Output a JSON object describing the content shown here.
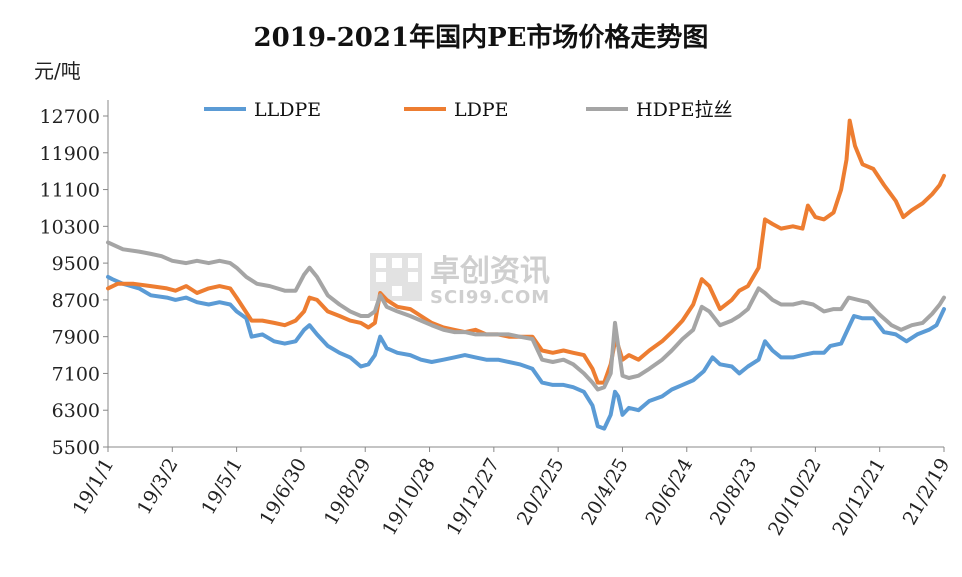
{
  "chart_data": {
    "type": "line",
    "title": "2019-2021年国内PE市场价格走势图",
    "ylabel": "元/吨",
    "ylim": [
      5500,
      12700
    ],
    "yticks": [
      12700,
      11900,
      11100,
      10300,
      9500,
      8700,
      7900,
      7100,
      6300,
      5500
    ],
    "xlim": [
      "2019-01-01",
      "2021-02-19"
    ],
    "xticks": [
      "19/1/1",
      "19/3/2",
      "19/5/1",
      "19/6/30",
      "19/8/29",
      "19/10/28",
      "19/12/27",
      "20/2/25",
      "20/4/25",
      "20/6/24",
      "20/8/23",
      "20/10/22",
      "20/12/21",
      "21/2/19"
    ],
    "legend_position": "top",
    "grid": false,
    "series": [
      {
        "name": "LLDPE",
        "color": "#5b9bd5",
        "points": [
          [
            "2019-01-01",
            9200
          ],
          [
            "2019-01-05",
            9150
          ],
          [
            "2019-01-15",
            9050
          ],
          [
            "2019-01-30",
            8950
          ],
          [
            "2019-02-10",
            8800
          ],
          [
            "2019-02-25",
            8750
          ],
          [
            "2019-03-05",
            8700
          ],
          [
            "2019-03-15",
            8750
          ],
          [
            "2019-03-25",
            8650
          ],
          [
            "2019-04-05",
            8600
          ],
          [
            "2019-04-15",
            8650
          ],
          [
            "2019-04-25",
            8600
          ],
          [
            "2019-05-01",
            8450
          ],
          [
            "2019-05-10",
            8300
          ],
          [
            "2019-05-15",
            7900
          ],
          [
            "2019-05-25",
            7950
          ],
          [
            "2019-06-05",
            7800
          ],
          [
            "2019-06-15",
            7750
          ],
          [
            "2019-06-25",
            7800
          ],
          [
            "2019-07-03",
            8050
          ],
          [
            "2019-07-08",
            8150
          ],
          [
            "2019-07-15",
            7950
          ],
          [
            "2019-07-25",
            7700
          ],
          [
            "2019-08-05",
            7550
          ],
          [
            "2019-08-15",
            7450
          ],
          [
            "2019-08-25",
            7250
          ],
          [
            "2019-09-01",
            7300
          ],
          [
            "2019-09-07",
            7500
          ],
          [
            "2019-09-12",
            7900
          ],
          [
            "2019-09-18",
            7650
          ],
          [
            "2019-09-28",
            7550
          ],
          [
            "2019-10-10",
            7500
          ],
          [
            "2019-10-20",
            7400
          ],
          [
            "2019-10-30",
            7350
          ],
          [
            "2019-11-10",
            7400
          ],
          [
            "2019-11-20",
            7450
          ],
          [
            "2019-11-30",
            7500
          ],
          [
            "2019-12-10",
            7450
          ],
          [
            "2019-12-20",
            7400
          ],
          [
            "2019-12-31",
            7400
          ],
          [
            "2020-01-10",
            7350
          ],
          [
            "2020-01-20",
            7300
          ],
          [
            "2020-02-01",
            7200
          ],
          [
            "2020-02-10",
            6900
          ],
          [
            "2020-02-20",
            6850
          ],
          [
            "2020-03-01",
            6850
          ],
          [
            "2020-03-10",
            6800
          ],
          [
            "2020-03-20",
            6700
          ],
          [
            "2020-03-28",
            6400
          ],
          [
            "2020-04-02",
            5950
          ],
          [
            "2020-04-08",
            5900
          ],
          [
            "2020-04-14",
            6200
          ],
          [
            "2020-04-18",
            6700
          ],
          [
            "2020-04-21",
            6600
          ],
          [
            "2020-04-25",
            6200
          ],
          [
            "2020-05-01",
            6350
          ],
          [
            "2020-05-10",
            6300
          ],
          [
            "2020-05-20",
            6500
          ],
          [
            "2020-06-01",
            6600
          ],
          [
            "2020-06-10",
            6750
          ],
          [
            "2020-06-20",
            6850
          ],
          [
            "2020-06-30",
            6950
          ],
          [
            "2020-07-10",
            7150
          ],
          [
            "2020-07-18",
            7450
          ],
          [
            "2020-07-25",
            7300
          ],
          [
            "2020-08-05",
            7250
          ],
          [
            "2020-08-12",
            7100
          ],
          [
            "2020-08-20",
            7250
          ],
          [
            "2020-08-30",
            7400
          ],
          [
            "2020-09-05",
            7800
          ],
          [
            "2020-09-12",
            7600
          ],
          [
            "2020-09-20",
            7450
          ],
          [
            "2020-10-01",
            7450
          ],
          [
            "2020-10-10",
            7500
          ],
          [
            "2020-10-20",
            7550
          ],
          [
            "2020-10-30",
            7550
          ],
          [
            "2020-11-05",
            7700
          ],
          [
            "2020-11-15",
            7750
          ],
          [
            "2020-11-22",
            8100
          ],
          [
            "2020-11-27",
            8350
          ],
          [
            "2020-12-05",
            8300
          ],
          [
            "2020-12-15",
            8300
          ],
          [
            "2020-12-25",
            8000
          ],
          [
            "2021-01-05",
            7950
          ],
          [
            "2021-01-15",
            7800
          ],
          [
            "2021-01-25",
            7950
          ],
          [
            "2021-02-05",
            8050
          ],
          [
            "2021-02-12",
            8150
          ],
          [
            "2021-02-19",
            8500
          ]
        ]
      },
      {
        "name": "LDPE",
        "color": "#ed7d31",
        "points": [
          [
            "2019-01-01",
            8950
          ],
          [
            "2019-01-10",
            9050
          ],
          [
            "2019-01-25",
            9050
          ],
          [
            "2019-02-10",
            9000
          ],
          [
            "2019-02-25",
            8950
          ],
          [
            "2019-03-05",
            8900
          ],
          [
            "2019-03-15",
            9000
          ],
          [
            "2019-03-25",
            8850
          ],
          [
            "2019-04-05",
            8950
          ],
          [
            "2019-04-15",
            9000
          ],
          [
            "2019-04-25",
            8950
          ],
          [
            "2019-05-01",
            8750
          ],
          [
            "2019-05-08",
            8500
          ],
          [
            "2019-05-15",
            8250
          ],
          [
            "2019-05-25",
            8250
          ],
          [
            "2019-06-05",
            8200
          ],
          [
            "2019-06-15",
            8150
          ],
          [
            "2019-06-25",
            8250
          ],
          [
            "2019-07-03",
            8450
          ],
          [
            "2019-07-08",
            8750
          ],
          [
            "2019-07-15",
            8700
          ],
          [
            "2019-07-25",
            8450
          ],
          [
            "2019-08-05",
            8350
          ],
          [
            "2019-08-15",
            8250
          ],
          [
            "2019-08-25",
            8200
          ],
          [
            "2019-09-01",
            8100
          ],
          [
            "2019-09-07",
            8200
          ],
          [
            "2019-09-12",
            8850
          ],
          [
            "2019-09-18",
            8700
          ],
          [
            "2019-09-28",
            8550
          ],
          [
            "2019-10-10",
            8500
          ],
          [
            "2019-10-20",
            8350
          ],
          [
            "2019-10-30",
            8200
          ],
          [
            "2019-11-10",
            8100
          ],
          [
            "2019-11-20",
            8050
          ],
          [
            "2019-11-30",
            8000
          ],
          [
            "2019-12-10",
            8050
          ],
          [
            "2019-12-20",
            7950
          ],
          [
            "2019-12-31",
            7950
          ],
          [
            "2020-01-10",
            7900
          ],
          [
            "2020-01-20",
            7900
          ],
          [
            "2020-02-01",
            7900
          ],
          [
            "2020-02-10",
            7600
          ],
          [
            "2020-02-20",
            7550
          ],
          [
            "2020-03-01",
            7600
          ],
          [
            "2020-03-10",
            7550
          ],
          [
            "2020-03-20",
            7500
          ],
          [
            "2020-03-28",
            7200
          ],
          [
            "2020-04-02",
            6900
          ],
          [
            "2020-04-08",
            6900
          ],
          [
            "2020-04-14",
            7300
          ],
          [
            "2020-04-18",
            7800
          ],
          [
            "2020-04-21",
            7700
          ],
          [
            "2020-04-25",
            7400
          ],
          [
            "2020-05-01",
            7500
          ],
          [
            "2020-05-10",
            7400
          ],
          [
            "2020-05-20",
            7600
          ],
          [
            "2020-06-01",
            7800
          ],
          [
            "2020-06-10",
            8000
          ],
          [
            "2020-06-20",
            8250
          ],
          [
            "2020-06-30",
            8600
          ],
          [
            "2020-07-08",
            9150
          ],
          [
            "2020-07-15",
            9000
          ],
          [
            "2020-07-25",
            8500
          ],
          [
            "2020-08-05",
            8700
          ],
          [
            "2020-08-12",
            8900
          ],
          [
            "2020-08-20",
            9000
          ],
          [
            "2020-08-30",
            9400
          ],
          [
            "2020-09-05",
            10450
          ],
          [
            "2020-09-12",
            10350
          ],
          [
            "2020-09-20",
            10250
          ],
          [
            "2020-10-01",
            10300
          ],
          [
            "2020-10-10",
            10250
          ],
          [
            "2020-10-15",
            10750
          ],
          [
            "2020-10-22",
            10500
          ],
          [
            "2020-10-30",
            10450
          ],
          [
            "2020-11-08",
            10600
          ],
          [
            "2020-11-15",
            11100
          ],
          [
            "2020-11-20",
            11750
          ],
          [
            "2020-11-23",
            12600
          ],
          [
            "2020-11-28",
            12050
          ],
          [
            "2020-12-05",
            11650
          ],
          [
            "2020-12-15",
            11550
          ],
          [
            "2020-12-25",
            11200
          ],
          [
            "2021-01-05",
            10850
          ],
          [
            "2021-01-12",
            10500
          ],
          [
            "2021-01-20",
            10650
          ],
          [
            "2021-01-30",
            10800
          ],
          [
            "2021-02-08",
            11000
          ],
          [
            "2021-02-15",
            11200
          ],
          [
            "2021-02-19",
            11400
          ]
        ]
      },
      {
        "name": "HDPE拉丝",
        "color": "#a5a5a5",
        "points": [
          [
            "2019-01-01",
            9950
          ],
          [
            "2019-01-15",
            9800
          ],
          [
            "2019-01-30",
            9750
          ],
          [
            "2019-02-10",
            9700
          ],
          [
            "2019-02-20",
            9650
          ],
          [
            "2019-03-02",
            9550
          ],
          [
            "2019-03-15",
            9500
          ],
          [
            "2019-03-25",
            9550
          ],
          [
            "2019-04-05",
            9500
          ],
          [
            "2019-04-15",
            9550
          ],
          [
            "2019-04-25",
            9500
          ],
          [
            "2019-05-01",
            9400
          ],
          [
            "2019-05-10",
            9200
          ],
          [
            "2019-05-20",
            9050
          ],
          [
            "2019-06-01",
            9000
          ],
          [
            "2019-06-15",
            8900
          ],
          [
            "2019-06-25",
            8900
          ],
          [
            "2019-07-03",
            9250
          ],
          [
            "2019-07-08",
            9400
          ],
          [
            "2019-07-15",
            9200
          ],
          [
            "2019-07-25",
            8800
          ],
          [
            "2019-08-05",
            8600
          ],
          [
            "2019-08-15",
            8450
          ],
          [
            "2019-08-25",
            8350
          ],
          [
            "2019-09-01",
            8350
          ],
          [
            "2019-09-07",
            8450
          ],
          [
            "2019-09-12",
            8800
          ],
          [
            "2019-09-18",
            8550
          ],
          [
            "2019-09-28",
            8450
          ],
          [
            "2019-10-10",
            8350
          ],
          [
            "2019-10-20",
            8250
          ],
          [
            "2019-10-30",
            8150
          ],
          [
            "2019-11-10",
            8050
          ],
          [
            "2019-11-20",
            8000
          ],
          [
            "2019-11-30",
            8000
          ],
          [
            "2019-12-10",
            7950
          ],
          [
            "2019-12-20",
            7950
          ],
          [
            "2019-12-31",
            7950
          ],
          [
            "2020-01-10",
            7950
          ],
          [
            "2020-01-20",
            7900
          ],
          [
            "2020-02-01",
            7850
          ],
          [
            "2020-02-10",
            7400
          ],
          [
            "2020-02-20",
            7350
          ],
          [
            "2020-03-01",
            7400
          ],
          [
            "2020-03-10",
            7300
          ],
          [
            "2020-03-20",
            7100
          ],
          [
            "2020-03-28",
            6900
          ],
          [
            "2020-04-02",
            6750
          ],
          [
            "2020-04-08",
            6800
          ],
          [
            "2020-04-14",
            7100
          ],
          [
            "2020-04-18",
            8200
          ],
          [
            "2020-04-21",
            7700
          ],
          [
            "2020-04-25",
            7050
          ],
          [
            "2020-05-01",
            7000
          ],
          [
            "2020-05-10",
            7050
          ],
          [
            "2020-05-20",
            7200
          ],
          [
            "2020-06-01",
            7400
          ],
          [
            "2020-06-10",
            7600
          ],
          [
            "2020-06-20",
            7850
          ],
          [
            "2020-06-30",
            8050
          ],
          [
            "2020-07-08",
            8550
          ],
          [
            "2020-07-15",
            8450
          ],
          [
            "2020-07-25",
            8150
          ],
          [
            "2020-08-05",
            8250
          ],
          [
            "2020-08-12",
            8350
          ],
          [
            "2020-08-20",
            8500
          ],
          [
            "2020-08-30",
            8950
          ],
          [
            "2020-09-05",
            8850
          ],
          [
            "2020-09-12",
            8700
          ],
          [
            "2020-09-20",
            8600
          ],
          [
            "2020-10-01",
            8600
          ],
          [
            "2020-10-10",
            8650
          ],
          [
            "2020-10-20",
            8600
          ],
          [
            "2020-10-30",
            8450
          ],
          [
            "2020-11-08",
            8500
          ],
          [
            "2020-11-15",
            8500
          ],
          [
            "2020-11-22",
            8750
          ],
          [
            "2020-12-01",
            8700
          ],
          [
            "2020-12-10",
            8650
          ],
          [
            "2020-12-20",
            8400
          ],
          [
            "2021-01-01",
            8150
          ],
          [
            "2021-01-10",
            8050
          ],
          [
            "2021-01-20",
            8150
          ],
          [
            "2021-01-30",
            8200
          ],
          [
            "2021-02-08",
            8400
          ],
          [
            "2021-02-15",
            8600
          ],
          [
            "2021-02-19",
            8750
          ]
        ]
      }
    ]
  },
  "watermark": {
    "brand": "卓创资讯",
    "site": "SCI99.COM"
  }
}
